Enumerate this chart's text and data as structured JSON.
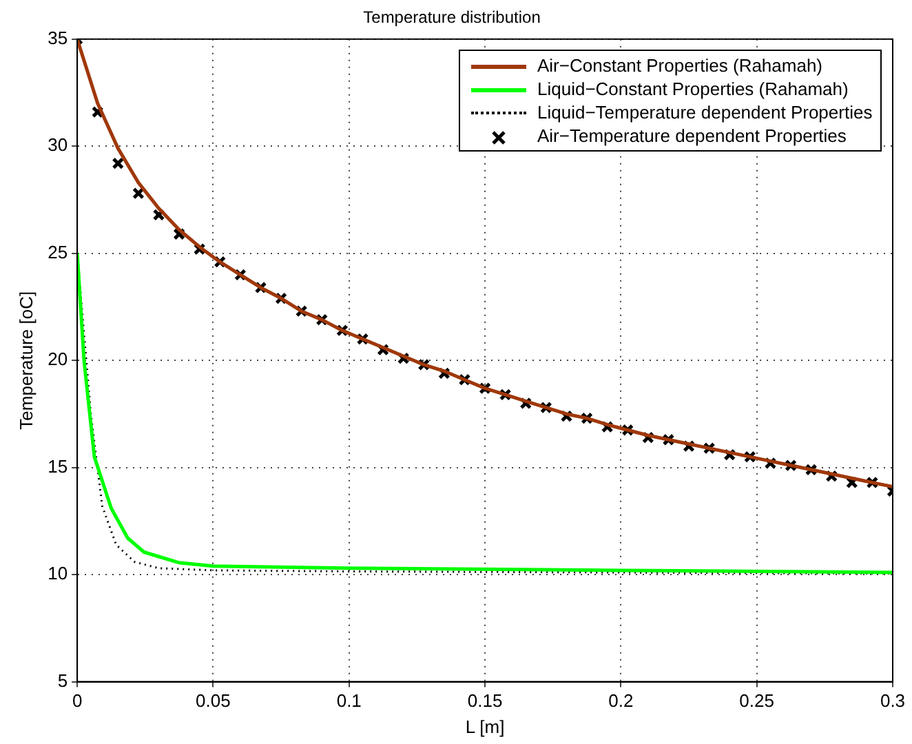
{
  "chart_data": {
    "type": "line",
    "title": "Temperature distribution",
    "xlabel": "L [m]",
    "ylabel": "Temperature [oC]",
    "xlim": [
      0,
      0.3
    ],
    "xticks": [
      0,
      0.05,
      0.1,
      0.15,
      0.2,
      0.25,
      0.3
    ],
    "ylim": [
      5,
      35
    ],
    "yticks": [
      5,
      10,
      15,
      20,
      25,
      30,
      35
    ],
    "grid": true,
    "legend": "top right",
    "series": [
      {
        "name": "Air−Constant Properties (Rahamah)",
        "color": "#a0380a",
        "line_style": "solid",
        "marker": "none",
        "x": [
          0,
          0.0075,
          0.015,
          0.0225,
          0.03,
          0.0375,
          0.045,
          0.0525,
          0.06,
          0.0675,
          0.075,
          0.0825,
          0.09,
          0.0975,
          0.105,
          0.1125,
          0.12,
          0.1275,
          0.135,
          0.1425,
          0.15,
          0.1575,
          0.165,
          0.1725,
          0.18,
          0.1875,
          0.195,
          0.2025,
          0.21,
          0.2175,
          0.225,
          0.2325,
          0.24,
          0.2475,
          0.255,
          0.2625,
          0.27,
          0.2775,
          0.285,
          0.2925,
          0.3
        ],
        "values": [
          35,
          32.0,
          29.9,
          28.3,
          27.1,
          26.1,
          25.3,
          24.6,
          24.0,
          23.4,
          22.9,
          22.3,
          21.9,
          21.4,
          21.0,
          20.6,
          20.2,
          19.8,
          19.5,
          19.1,
          18.7,
          18.4,
          18.1,
          17.8,
          17.5,
          17.3,
          17.0,
          16.75,
          16.5,
          16.3,
          16.1,
          15.9,
          15.7,
          15.5,
          15.3,
          15.1,
          14.9,
          14.7,
          14.5,
          14.3,
          14.1
        ]
      },
      {
        "name": "Liquid−Constant Properties (Rahamah)",
        "color": "#00ff00",
        "line_style": "solid",
        "marker": "none",
        "x": [
          0,
          0.0025,
          0.0063,
          0.0125,
          0.0186,
          0.0246,
          0.0374,
          0.05,
          0.1,
          0.2,
          0.3
        ],
        "values": [
          25,
          20,
          15.5,
          13.1,
          11.7,
          11.05,
          10.56,
          10.4,
          10.3,
          10.2,
          10.1
        ]
      },
      {
        "name": "Liquid−Temperature dependent Properties",
        "color": "#000000",
        "line_style": "dotted",
        "marker": "none",
        "x": [
          0,
          0.005,
          0.0092,
          0.0143,
          0.021,
          0.03,
          0.05,
          0.1,
          0.2,
          0.3
        ],
        "values": [
          25,
          17.5,
          13.2,
          11.4,
          10.6,
          10.3,
          10.2,
          10.15,
          10.1,
          10.05
        ]
      },
      {
        "name": "Air−Temperature dependent Properties",
        "type": "scatter",
        "color": "#000000",
        "marker": "cross",
        "x": [
          0,
          0.0075,
          0.015,
          0.0225,
          0.03,
          0.0375,
          0.045,
          0.0525,
          0.06,
          0.0675,
          0.075,
          0.0825,
          0.09,
          0.0975,
          0.105,
          0.1125,
          0.12,
          0.1275,
          0.135,
          0.1425,
          0.15,
          0.1575,
          0.165,
          0.1725,
          0.18,
          0.1875,
          0.195,
          0.2025,
          0.21,
          0.2175,
          0.225,
          0.2325,
          0.24,
          0.2475,
          0.255,
          0.2625,
          0.27,
          0.2775,
          0.285,
          0.2925,
          0.3
        ],
        "values": [
          35,
          31.6,
          29.2,
          27.8,
          26.8,
          25.9,
          25.2,
          24.6,
          24.0,
          23.4,
          22.9,
          22.3,
          21.9,
          21.4,
          21.0,
          20.5,
          20.1,
          19.8,
          19.4,
          19.1,
          18.7,
          18.4,
          18.0,
          17.8,
          17.4,
          17.3,
          16.9,
          16.75,
          16.4,
          16.3,
          16.0,
          15.9,
          15.6,
          15.5,
          15.2,
          15.1,
          14.9,
          14.6,
          14.3,
          14.3,
          13.9
        ]
      }
    ]
  }
}
